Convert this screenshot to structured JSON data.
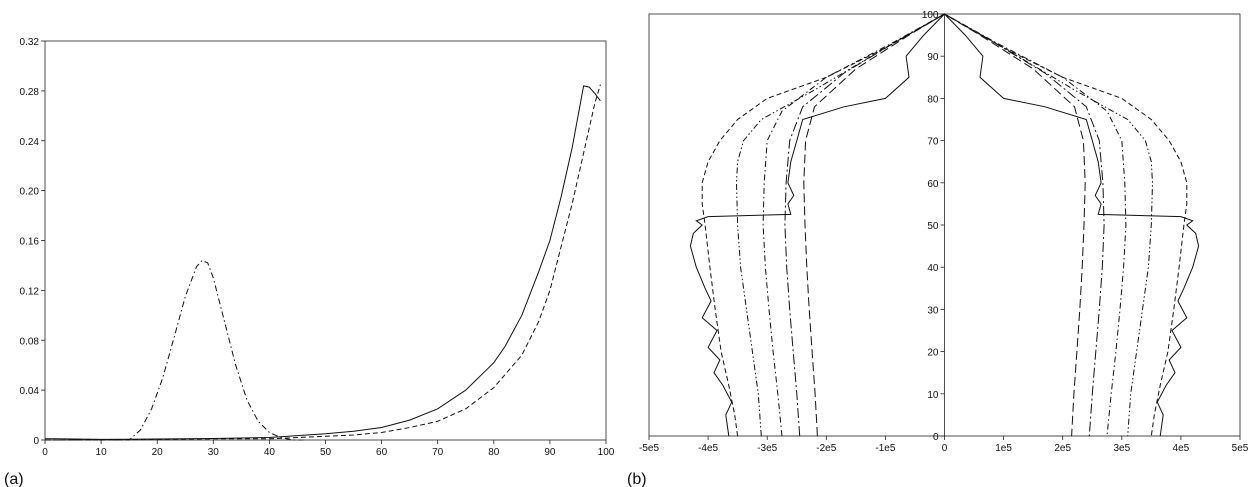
{
  "chart_data": [
    {
      "panel_label": "(a)",
      "type": "line",
      "xlim": [
        0,
        100
      ],
      "ylim": [
        0,
        0.32
      ],
      "x_ticks": [
        "0",
        "10",
        "20",
        "30",
        "40",
        "50",
        "60",
        "70",
        "80",
        "90",
        "100"
      ],
      "y_ticks": [
        "0",
        "0.04",
        "0.08",
        "0.12",
        "0.16",
        "0.20",
        "0.24",
        "0.28",
        "0.32"
      ],
      "grid": false,
      "legend": "none",
      "series": [
        {
          "style": "solid",
          "x": [
            0,
            2,
            10,
            20,
            30,
            40,
            50,
            55,
            60,
            65,
            70,
            75,
            80,
            82,
            85,
            88,
            90,
            92,
            94,
            96,
            97,
            98,
            99
          ],
          "y": [
            0.001,
            0.001,
            0.0005,
            0.0008,
            0.0012,
            0.002,
            0.005,
            0.007,
            0.01,
            0.016,
            0.025,
            0.04,
            0.062,
            0.075,
            0.1,
            0.135,
            0.16,
            0.195,
            0.235,
            0.284,
            0.283,
            0.278,
            0.272
          ]
        },
        {
          "style": "dashed",
          "x": [
            0,
            10,
            20,
            30,
            40,
            50,
            55,
            60,
            65,
            70,
            75,
            80,
            85,
            88,
            90,
            92,
            94,
            96,
            98,
            99
          ],
          "y": [
            0,
            0,
            0.0005,
            0.001,
            0.001,
            0.003,
            0.004,
            0.006,
            0.01,
            0.015,
            0.025,
            0.042,
            0.068,
            0.095,
            0.12,
            0.155,
            0.19,
            0.23,
            0.27,
            0.285
          ]
        },
        {
          "style": "dash-dot",
          "x": [
            0,
            15,
            17,
            19,
            21,
            23,
            25,
            27,
            28,
            29,
            30,
            32,
            34,
            36,
            38,
            40,
            42,
            44,
            46
          ],
          "y": [
            0,
            0.0,
            0.008,
            0.025,
            0.05,
            0.082,
            0.115,
            0.139,
            0.144,
            0.142,
            0.13,
            0.095,
            0.06,
            0.032,
            0.015,
            0.006,
            0.002,
            0.0,
            0.0
          ]
        }
      ]
    },
    {
      "panel_label": "(b)",
      "type": "line",
      "xlim": [
        -500000,
        500000
      ],
      "ylim": [
        0,
        100
      ],
      "x_ticks": [
        "-5e5",
        "-4e5",
        "-3e5",
        "-2e5",
        "-1e5",
        "0",
        "1e5",
        "2e5",
        "3e5",
        "4e5",
        "5e5"
      ],
      "y_ticks": [
        "0",
        "10",
        "20",
        "30",
        "40",
        "50",
        "60",
        "70",
        "80",
        "90",
        "100"
      ],
      "grid": false,
      "legend": "none",
      "series": [
        {
          "style": "solid",
          "x": [
            -365000,
            -370000,
            -360000,
            -375000,
            -390000,
            -380000,
            -400000,
            -385000,
            -410000,
            -395000,
            -405000,
            -420000,
            -430000,
            -425000,
            -410000,
            -420000,
            -400000,
            -260000,
            -265000,
            -255000,
            -265000,
            -260000,
            -250000,
            -240000,
            -170000,
            -100000,
            -60000,
            -65000,
            -35000,
            0,
            35000,
            65000,
            60000,
            100000,
            170000,
            240000,
            250000,
            260000,
            265000,
            255000,
            265000,
            260000,
            400000,
            420000,
            410000,
            425000,
            430000,
            420000,
            405000,
            395000,
            410000,
            385000,
            400000,
            380000,
            390000,
            375000,
            360000,
            370000,
            365000
          ],
          "y": [
            0,
            5,
            8,
            12,
            15,
            18,
            21,
            25,
            28,
            32,
            35,
            40,
            45,
            48,
            50,
            51,
            52,
            52.5,
            55,
            57,
            60,
            65,
            70,
            75,
            78,
            80,
            85,
            90,
            95,
            100,
            95,
            90,
            85,
            80,
            78,
            75,
            70,
            65,
            60,
            57,
            55,
            52.5,
            52,
            51,
            50,
            48,
            45,
            40,
            35,
            32,
            28,
            25,
            21,
            18,
            15,
            12,
            8,
            5,
            0
          ]
        },
        {
          "style": "dashed",
          "x": [
            -350000,
            -355000,
            -365000,
            -378000,
            -388000,
            -397000,
            -405000,
            -410000,
            -410000,
            -400000,
            -380000,
            -350000,
            -300000,
            -200000,
            -100000,
            0,
            100000,
            200000,
            300000,
            350000,
            380000,
            400000,
            410000,
            410000,
            405000,
            397000,
            388000,
            378000,
            365000,
            355000,
            350000
          ],
          "y": [
            0,
            5,
            12,
            20,
            30,
            40,
            50,
            55,
            60,
            65,
            70,
            75,
            80,
            85,
            92,
            100,
            92,
            85,
            80,
            75,
            70,
            65,
            60,
            55,
            50,
            40,
            30,
            20,
            12,
            5,
            0
          ],
          "note_side": "full"
        },
        {
          "style": "dash-dot-dot",
          "x": [
            -310000,
            -315000,
            -325000,
            -335000,
            -345000,
            -350000,
            -352000,
            -350000,
            -340000,
            -310000,
            -220000,
            -100000,
            0,
            100000,
            220000,
            310000,
            340000,
            350000,
            352000,
            350000,
            345000,
            335000,
            325000,
            315000,
            310000
          ],
          "y": [
            0,
            10,
            20,
            30,
            40,
            50,
            60,
            65,
            70,
            75,
            82,
            92,
            100,
            92,
            82,
            75,
            70,
            65,
            60,
            50,
            40,
            30,
            20,
            10,
            0
          ]
        },
        {
          "style": "dash-dot",
          "x": [
            -275000,
            -282000,
            -290000,
            -297000,
            -303000,
            -307000,
            -305000,
            -300000,
            -275000,
            -200000,
            -90000,
            0,
            90000,
            200000,
            275000,
            300000,
            305000,
            307000,
            303000,
            297000,
            290000,
            282000,
            275000
          ],
          "y": [
            0,
            10,
            20,
            30,
            40,
            50,
            60,
            70,
            77,
            85,
            93,
            100,
            93,
            85,
            77,
            70,
            60,
            50,
            40,
            30,
            20,
            10,
            0
          ]
        },
        {
          "style": "long-dash-dot",
          "x": [
            -245000,
            -250000,
            -256000,
            -262000,
            -267000,
            -270000,
            -268000,
            -262000,
            -240000,
            -170000,
            -75000,
            0,
            75000,
            170000,
            240000,
            262000,
            268000,
            270000,
            267000,
            262000,
            256000,
            250000,
            245000
          ],
          "y": [
            0,
            10,
            20,
            30,
            40,
            50,
            60,
            70,
            78,
            86,
            94,
            100,
            94,
            86,
            78,
            70,
            60,
            50,
            40,
            30,
            20,
            10,
            0
          ]
        },
        {
          "style": "long-dash",
          "x": [
            -215000,
            -219000,
            -224000,
            -229000,
            -233000,
            -236000,
            -238000,
            -235000,
            -220000,
            -150000,
            -60000,
            0,
            60000,
            150000,
            220000,
            235000,
            238000,
            236000,
            233000,
            229000,
            224000,
            219000,
            215000
          ],
          "y": [
            0,
            10,
            20,
            30,
            40,
            50,
            60,
            70,
            78,
            87,
            95,
            100,
            95,
            87,
            78,
            70,
            60,
            50,
            40,
            30,
            20,
            10,
            0
          ]
        }
      ]
    }
  ]
}
